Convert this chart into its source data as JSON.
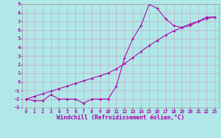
{
  "title": "",
  "xlabel": "Windchill (Refroidissement éolien,°C)",
  "ylabel": "",
  "bg_color": "#b0e8e8",
  "grid_color": "#c8a8c8",
  "line_color": "#aa00aa",
  "x_data": [
    0,
    1,
    2,
    3,
    4,
    5,
    6,
    7,
    8,
    9,
    10,
    11,
    12,
    13,
    14,
    15,
    16,
    17,
    18,
    19,
    20,
    21,
    22,
    23
  ],
  "y_curve": [
    -2.0,
    -2.2,
    -2.2,
    -1.5,
    -2.0,
    -2.0,
    -2.0,
    -2.5,
    -2.0,
    -2.0,
    -2.0,
    -0.5,
    2.8,
    5.0,
    6.5,
    9.0,
    8.5,
    7.3,
    6.5,
    6.3,
    6.5,
    7.0,
    7.5,
    7.5
  ],
  "y_line": [
    -2.0,
    -1.7,
    -1.4,
    -1.1,
    -0.8,
    -0.5,
    -0.2,
    0.1,
    0.4,
    0.7,
    1.0,
    1.5,
    2.1,
    2.8,
    3.5,
    4.2,
    4.8,
    5.4,
    5.9,
    6.3,
    6.7,
    7.0,
    7.3,
    7.5
  ],
  "ylim": [
    -3,
    9
  ],
  "xlim": [
    -0.5,
    23.5
  ],
  "yticks": [
    -3,
    -2,
    -1,
    0,
    1,
    2,
    3,
    4,
    5,
    6,
    7,
    8,
    9
  ],
  "xticks": [
    0,
    1,
    2,
    3,
    4,
    5,
    6,
    7,
    8,
    9,
    10,
    11,
    12,
    13,
    14,
    15,
    16,
    17,
    18,
    19,
    20,
    21,
    22,
    23
  ],
  "tick_fontsize": 4.8,
  "xlabel_fontsize": 6.0,
  "marker": "+",
  "marker_size": 3,
  "line_width": 0.8
}
